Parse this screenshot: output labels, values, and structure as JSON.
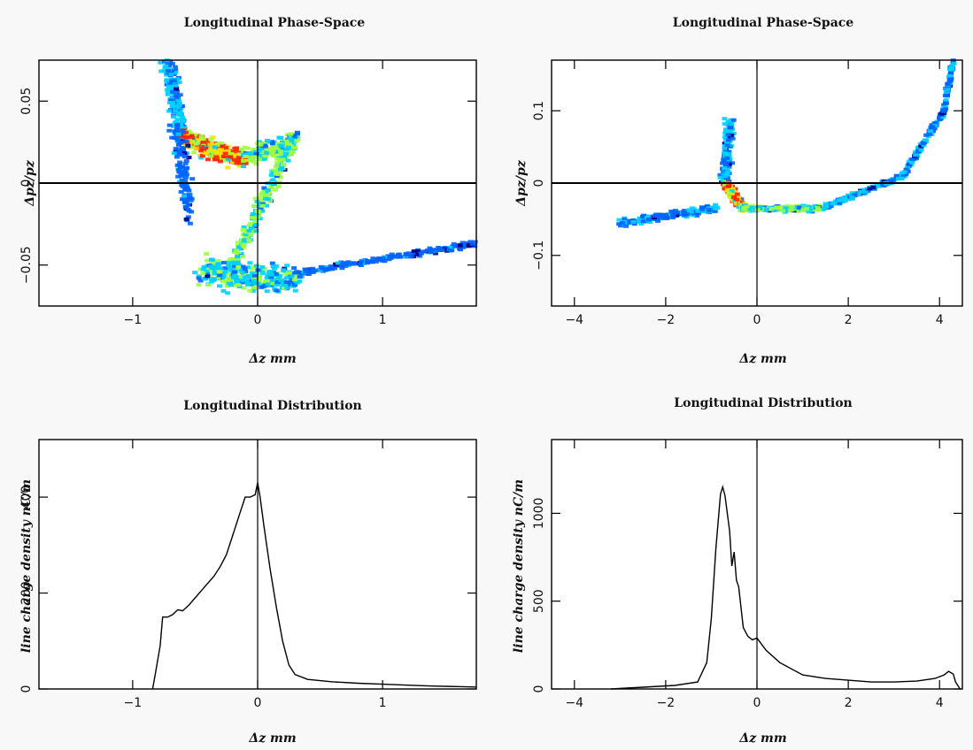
{
  "chart_data": [
    {
      "id": "tl",
      "type": "scatter",
      "title": "Longitudinal Phase-Space",
      "xlabel": "Δz mm",
      "ylabel": "Δpz/pz",
      "xlim": [
        -1.75,
        1.75
      ],
      "ylim": [
        -0.075,
        0.075
      ],
      "xticks": [
        {
          "v": -1,
          "label": "−1"
        },
        {
          "v": 0,
          "label": "0"
        },
        {
          "v": 1,
          "label": "1"
        }
      ],
      "yticks": [
        {
          "v": -0.05,
          "label": "−0.05"
        },
        {
          "v": 0,
          "label": "0"
        },
        {
          "v": 0.05,
          "label": "0.05"
        }
      ],
      "grid": false,
      "colormap": [
        "#00008b",
        "#0064ff",
        "#00d0ff",
        "#a0ff40",
        "#ffe000",
        "#ff2000"
      ],
      "segments": [
        {
          "from": [
            -0.72,
            0.073
          ],
          "to": [
            -0.6,
            0.03
          ],
          "width": 0.11,
          "wy": 0.02,
          "n": 180,
          "max": 0.45
        },
        {
          "from": [
            -0.62,
            0.028
          ],
          "to": [
            -0.1,
            0.014
          ],
          "width": 0.1,
          "wy": 0.012,
          "n": 320,
          "max": 1.0
        },
        {
          "from": [
            -0.1,
            0.016
          ],
          "to": [
            0.3,
            0.025
          ],
          "width": 0.08,
          "wy": 0.012,
          "n": 160,
          "max": 0.6
        },
        {
          "from": [
            -0.65,
            0.035
          ],
          "to": [
            -0.55,
            -0.02
          ],
          "width": 0.12,
          "wy": 0.012,
          "n": 120,
          "max": 0.35
        },
        {
          "from": [
            0.3,
            0.03
          ],
          "to": [
            -0.2,
            -0.05
          ],
          "width": 0.1,
          "wy": 0.012,
          "n": 260,
          "max": 0.65
        },
        {
          "from": [
            -0.45,
            -0.055
          ],
          "to": [
            0.3,
            -0.06
          ],
          "width": 0.16,
          "wy": 0.018,
          "n": 300,
          "max": 0.55
        },
        {
          "from": [
            0.3,
            -0.055
          ],
          "to": [
            1.75,
            -0.037
          ],
          "width": 0.05,
          "wy": 0.004,
          "n": 220,
          "max": 0.35
        }
      ]
    },
    {
      "id": "tr",
      "type": "scatter",
      "title": "Longitudinal Phase-Space",
      "xlabel": "Δz mm",
      "ylabel": "Δpz/pz",
      "xlim": [
        -4.5,
        4.5
      ],
      "ylim": [
        -0.17,
        0.17
      ],
      "xticks": [
        {
          "v": -4,
          "label": "−4"
        },
        {
          "v": -2,
          "label": "−2"
        },
        {
          "v": 0,
          "label": "0"
        },
        {
          "v": 2,
          "label": "2"
        },
        {
          "v": 4,
          "label": "4"
        }
      ],
      "yticks": [
        {
          "v": -0.1,
          "label": "−0.1"
        },
        {
          "v": 0,
          "label": "0"
        },
        {
          "v": 0.1,
          "label": "0.1"
        }
      ],
      "grid": false,
      "colormap": [
        "#00008b",
        "#0064ff",
        "#00d0ff",
        "#a0ff40",
        "#ffe000",
        "#ff2000"
      ],
      "segments": [
        {
          "from": [
            -3.0,
            -0.055
          ],
          "to": [
            -0.9,
            -0.035
          ],
          "width": 0.25,
          "wy": 0.01,
          "n": 220,
          "max": 0.4
        },
        {
          "from": [
            -0.6,
            0.085
          ],
          "to": [
            -0.7,
            0.0
          ],
          "width": 0.2,
          "wy": 0.02,
          "n": 160,
          "max": 0.45
        },
        {
          "from": [
            -0.7,
            0.0
          ],
          "to": [
            -0.3,
            -0.035
          ],
          "width": 0.15,
          "wy": 0.012,
          "n": 220,
          "max": 1.0
        },
        {
          "from": [
            -0.3,
            -0.035
          ],
          "to": [
            1.5,
            -0.035
          ],
          "width": 0.2,
          "wy": 0.008,
          "n": 240,
          "max": 0.6
        },
        {
          "from": [
            1.5,
            -0.033
          ],
          "to": [
            3.2,
            0.01
          ],
          "width": 0.15,
          "wy": 0.008,
          "n": 160,
          "max": 0.45
        },
        {
          "from": [
            3.2,
            0.01
          ],
          "to": [
            4.1,
            0.1
          ],
          "width": 0.1,
          "wy": 0.008,
          "n": 120,
          "max": 0.4
        },
        {
          "from": [
            4.1,
            0.1
          ],
          "to": [
            4.3,
            0.17
          ],
          "width": 0.08,
          "wy": 0.008,
          "n": 80,
          "max": 0.4
        }
      ]
    },
    {
      "id": "bl",
      "type": "line",
      "title": "Longitudinal Distribution",
      "xlabel": "Δz mm",
      "ylabel": "line charge density nC/m",
      "xlim": [
        -1.75,
        1.75
      ],
      "ylim": [
        0,
        520
      ],
      "xticks": [
        {
          "v": -1,
          "label": "−1"
        },
        {
          "v": 0,
          "label": "0"
        },
        {
          "v": 1,
          "label": "1"
        }
      ],
      "yticks": [
        {
          "v": 0,
          "label": "0"
        },
        {
          "v": 200,
          "label": "200"
        },
        {
          "v": 400,
          "label": "400"
        }
      ],
      "grid": false,
      "series": [
        {
          "x": [
            -0.84,
            -0.82,
            -0.78,
            -0.76,
            -0.72,
            -0.68,
            -0.64,
            -0.6,
            -0.55,
            -0.5,
            -0.45,
            -0.4,
            -0.35,
            -0.3,
            -0.25,
            -0.2,
            -0.15,
            -0.1,
            -0.06,
            -0.02,
            0.0,
            0.02,
            0.05,
            0.1,
            0.15,
            0.2,
            0.25,
            0.3,
            0.4,
            0.6,
            0.8,
            1.0,
            1.2,
            1.4,
            1.6,
            1.75
          ],
          "y": [
            0,
            30,
            90,
            150,
            150,
            155,
            165,
            163,
            175,
            190,
            205,
            220,
            235,
            255,
            280,
            320,
            360,
            400,
            400,
            405,
            430,
            400,
            340,
            250,
            170,
            100,
            50,
            30,
            20,
            15,
            12,
            10,
            8,
            6,
            5,
            4
          ]
        }
      ]
    },
    {
      "id": "br",
      "type": "line",
      "title": "Longitudinal Distribution",
      "xlabel": "Δz mm",
      "ylabel": "line charge density nC/m",
      "xlim": [
        -4.5,
        4.5
      ],
      "ylim": [
        0,
        1420
      ],
      "xticks": [
        {
          "v": -4,
          "label": "−4"
        },
        {
          "v": -2,
          "label": "−2"
        },
        {
          "v": 0,
          "label": "0"
        },
        {
          "v": 2,
          "label": "2"
        },
        {
          "v": 4,
          "label": "4"
        }
      ],
      "yticks": [
        {
          "v": 0,
          "label": "0"
        },
        {
          "v": 500,
          "label": "500"
        },
        {
          "v": 1000,
          "label": "1000"
        }
      ],
      "grid": false,
      "series": [
        {
          "x": [
            -3.2,
            -2.5,
            -1.8,
            -1.3,
            -1.1,
            -1.0,
            -0.9,
            -0.8,
            -0.75,
            -0.7,
            -0.6,
            -0.55,
            -0.5,
            -0.45,
            -0.4,
            -0.3,
            -0.2,
            -0.1,
            0.0,
            0.2,
            0.5,
            1.0,
            1.5,
            2.0,
            2.5,
            3.0,
            3.5,
            3.9,
            4.1,
            4.2,
            4.3,
            4.35,
            4.45
          ],
          "y": [
            0,
            10,
            20,
            40,
            150,
            400,
            800,
            1110,
            1150,
            1100,
            900,
            700,
            780,
            620,
            580,
            350,
            300,
            280,
            290,
            220,
            150,
            80,
            60,
            50,
            40,
            40,
            45,
            60,
            80,
            100,
            85,
            40,
            0
          ]
        }
      ]
    }
  ]
}
